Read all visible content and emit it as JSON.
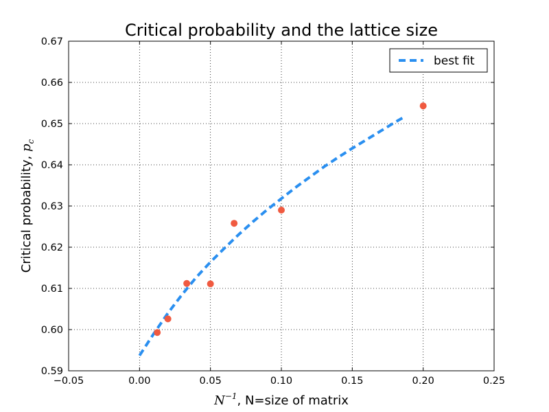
{
  "chart_data": {
    "type": "scatter",
    "title": "Critical probability and the lattice size",
    "xlabel": {
      "math_base": "N",
      "math_sup": "−1",
      "text": ", N=size of matrix"
    },
    "ylabel": {
      "text": "Critical probability, ",
      "math_base": "p",
      "math_sub": "c"
    },
    "xlim": [
      -0.05,
      0.25
    ],
    "ylim": [
      0.59,
      0.67
    ],
    "x_ticks": [
      -0.05,
      0.0,
      0.05,
      0.1,
      0.15,
      0.2,
      0.25
    ],
    "x_tick_labels": [
      "−0.05",
      "0.00",
      "0.05",
      "0.10",
      "0.15",
      "0.20",
      "0.25"
    ],
    "y_ticks": [
      0.59,
      0.6,
      0.61,
      0.62,
      0.63,
      0.64,
      0.65,
      0.66,
      0.67
    ],
    "y_tick_labels": [
      "0.59",
      "0.60",
      "0.61",
      "0.62",
      "0.63",
      "0.64",
      "0.65",
      "0.66",
      "0.67"
    ],
    "grid": true,
    "legend_position": "top-right",
    "series": [
      {
        "kind": "scatter",
        "color": "#f05a40",
        "points": [
          {
            "x": 0.0125,
            "y": 0.5993
          },
          {
            "x": 0.02,
            "y": 0.6026
          },
          {
            "x": 0.0333,
            "y": 0.6112
          },
          {
            "x": 0.05,
            "y": 0.6111
          },
          {
            "x": 0.0667,
            "y": 0.6258
          },
          {
            "x": 0.1,
            "y": 0.629
          },
          {
            "x": 0.2,
            "y": 0.6543
          }
        ]
      },
      {
        "kind": "line",
        "name": "best fit",
        "style": "dashed",
        "color": "#2a8ff0",
        "points": [
          {
            "x": 0.0,
            "y": 0.5937
          },
          {
            "x": 0.01,
            "y": 0.599
          },
          {
            "x": 0.02,
            "y": 0.604
          },
          {
            "x": 0.03,
            "y": 0.6085
          },
          {
            "x": 0.04,
            "y": 0.6127
          },
          {
            "x": 0.05,
            "y": 0.6164
          },
          {
            "x": 0.06,
            "y": 0.6198
          },
          {
            "x": 0.07,
            "y": 0.6231
          },
          {
            "x": 0.08,
            "y": 0.6262
          },
          {
            "x": 0.09,
            "y": 0.6291
          },
          {
            "x": 0.1,
            "y": 0.6318
          },
          {
            "x": 0.11,
            "y": 0.6345
          },
          {
            "x": 0.12,
            "y": 0.637
          },
          {
            "x": 0.13,
            "y": 0.6395
          },
          {
            "x": 0.14,
            "y": 0.6418
          },
          {
            "x": 0.15,
            "y": 0.644
          },
          {
            "x": 0.16,
            "y": 0.6461
          },
          {
            "x": 0.17,
            "y": 0.6482
          },
          {
            "x": 0.18,
            "y": 0.6503
          },
          {
            "x": 0.1875,
            "y": 0.6518
          }
        ]
      }
    ]
  }
}
